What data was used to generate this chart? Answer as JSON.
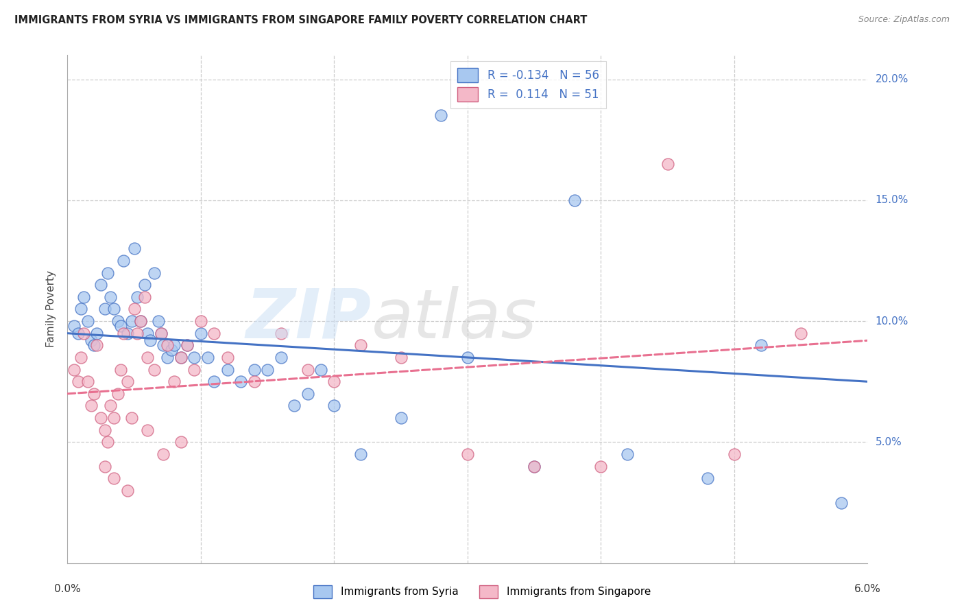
{
  "title": "IMMIGRANTS FROM SYRIA VS IMMIGRANTS FROM SINGAPORE FAMILY POVERTY CORRELATION CHART",
  "source": "Source: ZipAtlas.com",
  "ylabel": "Family Poverty",
  "xlim": [
    0.0,
    6.0
  ],
  "ylim": [
    0.0,
    21.0
  ],
  "legend_syria_R": "-0.134",
  "legend_syria_N": "56",
  "legend_singapore_R": "0.114",
  "legend_singapore_N": "51",
  "color_syria_fill": "#a8c8f0",
  "color_syria_edge": "#4472C4",
  "color_singapore_fill": "#f4b8c8",
  "color_singapore_edge": "#d06080",
  "color_syria_line": "#4472C4",
  "color_singapore_line": "#e87090",
  "syria_line_x0": 0.0,
  "syria_line_y0": 9.5,
  "syria_line_x1": 6.0,
  "syria_line_y1": 7.5,
  "singapore_line_x0": 0.0,
  "singapore_line_y0": 7.0,
  "singapore_line_x1": 6.0,
  "singapore_line_y1": 9.2,
  "syria_scatter_x": [
    0.05,
    0.08,
    0.1,
    0.12,
    0.15,
    0.18,
    0.2,
    0.22,
    0.25,
    0.28,
    0.3,
    0.32,
    0.35,
    0.38,
    0.4,
    0.42,
    0.45,
    0.48,
    0.5,
    0.52,
    0.55,
    0.58,
    0.6,
    0.62,
    0.65,
    0.68,
    0.7,
    0.72,
    0.75,
    0.78,
    0.8,
    0.85,
    0.9,
    0.95,
    1.0,
    1.05,
    1.1,
    1.2,
    1.3,
    1.4,
    1.5,
    1.6,
    1.7,
    1.8,
    1.9,
    2.0,
    2.2,
    2.5,
    2.8,
    3.0,
    3.5,
    3.8,
    4.2,
    4.8,
    5.2,
    5.8
  ],
  "syria_scatter_y": [
    9.8,
    9.5,
    10.5,
    11.0,
    10.0,
    9.2,
    9.0,
    9.5,
    11.5,
    10.5,
    12.0,
    11.0,
    10.5,
    10.0,
    9.8,
    12.5,
    9.5,
    10.0,
    13.0,
    11.0,
    10.0,
    11.5,
    9.5,
    9.2,
    12.0,
    10.0,
    9.5,
    9.0,
    8.5,
    8.8,
    9.0,
    8.5,
    9.0,
    8.5,
    9.5,
    8.5,
    7.5,
    8.0,
    7.5,
    8.0,
    8.0,
    8.5,
    6.5,
    7.0,
    8.0,
    6.5,
    4.5,
    6.0,
    18.5,
    8.5,
    4.0,
    15.0,
    4.5,
    3.5,
    9.0,
    2.5
  ],
  "singapore_scatter_x": [
    0.05,
    0.08,
    0.1,
    0.12,
    0.15,
    0.18,
    0.2,
    0.22,
    0.25,
    0.28,
    0.3,
    0.32,
    0.35,
    0.38,
    0.4,
    0.42,
    0.45,
    0.48,
    0.5,
    0.52,
    0.55,
    0.58,
    0.6,
    0.65,
    0.7,
    0.75,
    0.8,
    0.85,
    0.9,
    0.95,
    1.0,
    1.1,
    1.2,
    1.4,
    1.6,
    1.8,
    2.0,
    2.2,
    2.5,
    3.0,
    3.5,
    4.0,
    4.5,
    5.0,
    5.5,
    0.28,
    0.35,
    0.45,
    0.6,
    0.72,
    0.85
  ],
  "singapore_scatter_y": [
    8.0,
    7.5,
    8.5,
    9.5,
    7.5,
    6.5,
    7.0,
    9.0,
    6.0,
    5.5,
    5.0,
    6.5,
    6.0,
    7.0,
    8.0,
    9.5,
    7.5,
    6.0,
    10.5,
    9.5,
    10.0,
    11.0,
    8.5,
    8.0,
    9.5,
    9.0,
    7.5,
    8.5,
    9.0,
    8.0,
    10.0,
    9.5,
    8.5,
    7.5,
    9.5,
    8.0,
    7.5,
    9.0,
    8.5,
    4.5,
    4.0,
    4.0,
    16.5,
    4.5,
    9.5,
    4.0,
    3.5,
    3.0,
    5.5,
    4.5,
    5.0
  ]
}
